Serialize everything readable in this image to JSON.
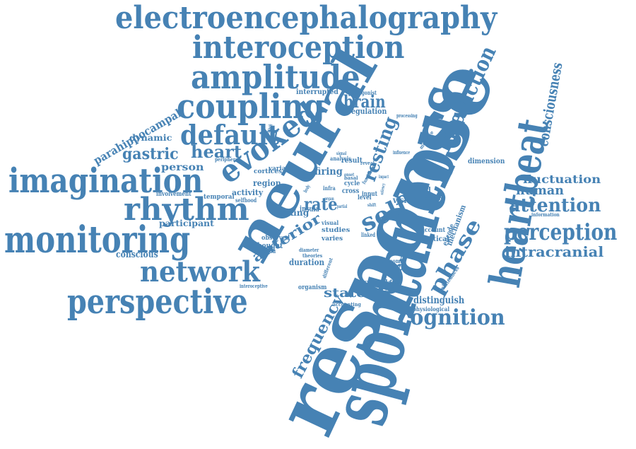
{
  "color": "#4682b4",
  "words": [
    {
      "text": "electroencephalography",
      "size": 44
    },
    {
      "text": "interoception",
      "size": 44
    },
    {
      "text": "amplitude",
      "size": 46
    },
    {
      "text": "coupling",
      "size": 48
    },
    {
      "text": "default",
      "size": 38
    },
    {
      "text": "imagination",
      "size": 48
    },
    {
      "text": "rhythm",
      "size": 44
    },
    {
      "text": "monitoring",
      "size": 52
    },
    {
      "text": "network",
      "size": 40
    },
    {
      "text": "perspective",
      "size": 48
    },
    {
      "text": "evoked",
      "size": 44
    },
    {
      "text": "heart",
      "size": 24
    },
    {
      "text": "gastric",
      "size": 22
    },
    {
      "text": "person",
      "size": 14
    },
    {
      "text": "dynamic",
      "size": 12
    },
    {
      "text": "parahippocampal",
      "size": 16
    },
    {
      "text": "brain",
      "size": 24
    },
    {
      "text": "regulation",
      "size": 11
    },
    {
      "text": "interrupted",
      "size": 10
    },
    {
      "text": "protagonist",
      "size": 8
    },
    {
      "text": "processing",
      "size": 7
    },
    {
      "text": "neural",
      "size": 80
    },
    {
      "text": "response",
      "size": 120
    },
    {
      "text": "spontaneous",
      "size": 110
    },
    {
      "text": "heartbeat",
      "size": 60
    },
    {
      "text": "interaction",
      "size": 30
    },
    {
      "text": "consciousness",
      "size": 20
    },
    {
      "text": "resting",
      "size": 26
    },
    {
      "text": "self",
      "size": 34
    },
    {
      "text": "rate",
      "size": 24
    },
    {
      "text": "anterior",
      "size": 20
    },
    {
      "text": "phase",
      "size": 30
    },
    {
      "text": "frequency",
      "size": 22
    },
    {
      "text": "viscera",
      "size": 16
    },
    {
      "text": "fluctuation",
      "size": 16
    },
    {
      "text": "human",
      "size": 18
    },
    {
      "text": "attention",
      "size": 26
    },
    {
      "text": "perception",
      "size": 32
    },
    {
      "text": "intracranial",
      "size": 20
    },
    {
      "text": "cognition",
      "size": 30
    },
    {
      "text": "state",
      "size": 18
    },
    {
      "text": "distinguish",
      "size": 14
    },
    {
      "text": "physiological",
      "size": 8
    },
    {
      "text": "mechanism",
      "size": 11
    },
    {
      "text": "encode",
      "size": 11
    },
    {
      "text": "relatedness",
      "size": 9
    },
    {
      "text": "dimension",
      "size": 10
    },
    {
      "text": "information",
      "size": 7
    },
    {
      "text": "vision",
      "size": 12
    },
    {
      "text": "related",
      "size": 10
    },
    {
      "text": "cognitive",
      "size": 7
    },
    {
      "text": "account",
      "size": 9
    },
    {
      "text": "cortical",
      "size": 10
    },
    {
      "text": "autonomic",
      "size": 8
    },
    {
      "text": "cingulate",
      "size": 9
    },
    {
      "text": "accounting",
      "size": 7
    },
    {
      "text": "linked",
      "size": 8
    },
    {
      "text": "studies",
      "size": 9
    },
    {
      "text": "varies",
      "size": 9
    },
    {
      "text": "visual",
      "size": 8
    },
    {
      "text": "insula",
      "size": 11
    },
    {
      "text": "taking",
      "size": 12
    },
    {
      "text": "thought",
      "size": 11
    },
    {
      "text": "function",
      "size": 10
    },
    {
      "text": "observed",
      "size": 9
    },
    {
      "text": "diameter",
      "size": 7
    },
    {
      "text": "theories",
      "size": 7
    },
    {
      "text": "duration",
      "size": 12
    },
    {
      "text": "organism",
      "size": 9
    },
    {
      "text": "interoceptive",
      "size": 7
    },
    {
      "text": "different",
      "size": 7
    },
    {
      "text": "firing",
      "size": 14
    },
    {
      "text": "result",
      "size": 10
    },
    {
      "text": "reveal",
      "size": 7
    },
    {
      "text": "analysis",
      "size": 8
    },
    {
      "text": "cortices",
      "size": 9
    },
    {
      "text": "variance",
      "size": 9
    },
    {
      "text": "peripheral",
      "size": 7
    },
    {
      "text": "region",
      "size": 12
    },
    {
      "text": "activity",
      "size": 11
    },
    {
      "text": "selfhood",
      "size": 8
    },
    {
      "text": "temporal",
      "size": 9
    },
    {
      "text": "involvement",
      "size": 9
    },
    {
      "text": "participant",
      "size": 12
    },
    {
      "text": "conscious",
      "size": 13
    },
    {
      "text": "cycle",
      "size": 9
    },
    {
      "text": "cross",
      "size": 10
    },
    {
      "text": "level",
      "size": 9
    },
    {
      "text": "input",
      "size": 9
    },
    {
      "text": "infra",
      "size": 8
    },
    {
      "text": "basal",
      "size": 7
    },
    {
      "text": "functional",
      "size": 7
    },
    {
      "text": "measure",
      "size": 7
    },
    {
      "text": "influence",
      "size": 7
    },
    {
      "text": "stomach",
      "size": 7
    },
    {
      "text": "body",
      "size": 7
    },
    {
      "text": "organ",
      "size": 6
    },
    {
      "text": "internal",
      "size": 7
    },
    {
      "text": "impact",
      "size": 6
    },
    {
      "text": "onset",
      "size": 6
    },
    {
      "text": "signal",
      "size": 6
    },
    {
      "text": "saliency",
      "size": 6
    },
    {
      "text": "partial",
      "size": 6
    },
    {
      "text": "shift",
      "size": 6
    }
  ]
}
